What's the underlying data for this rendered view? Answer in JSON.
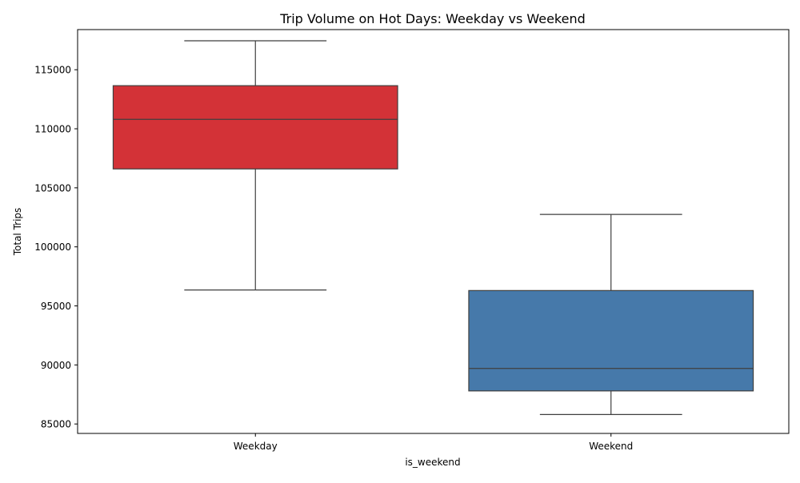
{
  "chart_data": {
    "type": "box",
    "title": "Trip Volume on Hot Days: Weekday vs Weekend",
    "xlabel": "is_weekend",
    "ylabel": "Total Trips",
    "categories": [
      "Weekday",
      "Weekend"
    ],
    "ylim": [
      84200,
      118400
    ],
    "yticks": [
      85000,
      90000,
      95000,
      100000,
      105000,
      110000,
      115000
    ],
    "ytick_labels": [
      "85000",
      "90000",
      "95000",
      "100000",
      "105000",
      "110000",
      "115000"
    ],
    "boxes": [
      {
        "category": "Weekday",
        "whisker_low": 96350,
        "q1": 106600,
        "median": 110800,
        "q3": 113650,
        "whisker_high": 117450,
        "color": "#d33237"
      },
      {
        "category": "Weekend",
        "whisker_low": 85800,
        "q1": 87800,
        "median": 89700,
        "q3": 96300,
        "whisker_high": 102750,
        "color": "#4679aa"
      }
    ],
    "grid": false,
    "legend": "none"
  }
}
